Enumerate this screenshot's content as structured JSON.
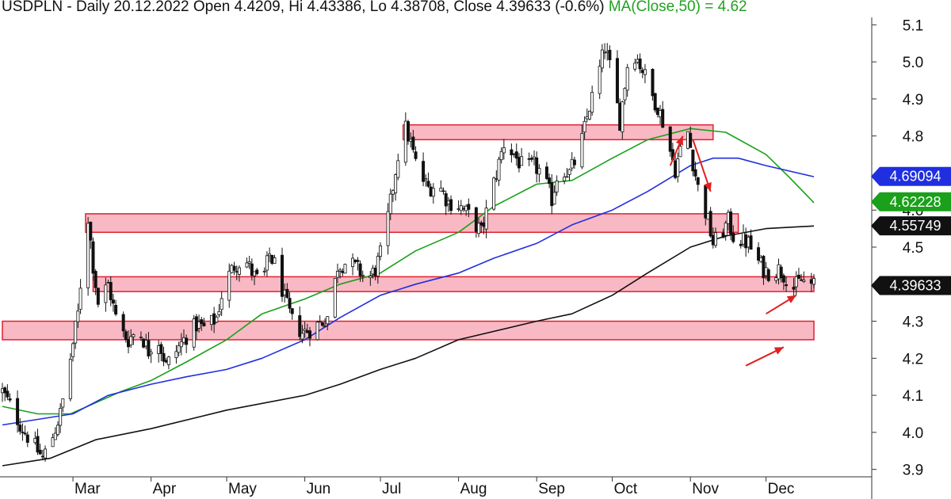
{
  "chart_data": {
    "type": "candlestick",
    "title": {
      "symbol": "USDPLN",
      "period": "Daily",
      "date": "20.12.2022",
      "open": "Open 4.4209,",
      "high": "Hi 4.43386,",
      "low": "Lo 4.38708,",
      "close": "Close 4.39633 (-0.6%)",
      "ma_label": "MA(Close,50) = 4.62"
    },
    "x_axis": {
      "type": "date",
      "range": [
        "2022-02-01",
        "2022-12-31"
      ],
      "ticks": [
        {
          "label": "Mar",
          "date": "2022-03-01"
        },
        {
          "label": "Apr",
          "date": "2022-04-01"
        },
        {
          "label": "May",
          "date": "2022-05-01"
        },
        {
          "label": "Jun",
          "date": "2022-06-01"
        },
        {
          "label": "Jul",
          "date": "2022-07-01"
        },
        {
          "label": "Aug",
          "date": "2022-08-01"
        },
        {
          "label": "Sep",
          "date": "2022-09-01"
        },
        {
          "label": "Oct",
          "date": "2022-10-01"
        },
        {
          "label": "Nov",
          "date": "2022-11-01"
        },
        {
          "label": "Dec",
          "date": "2022-12-01"
        }
      ]
    },
    "y_axis": {
      "position": "right",
      "range": [
        3.88,
        5.12
      ],
      "ticks": [
        {
          "label": "3.9",
          "value": 3.9
        },
        {
          "label": "4.0",
          "value": 4.0
        },
        {
          "label": "4.1",
          "value": 4.1
        },
        {
          "label": "4.2",
          "value": 4.2
        },
        {
          "label": "4.3",
          "value": 4.3
        },
        {
          "label": "4.5",
          "value": 4.5
        },
        {
          "label": "4.6",
          "value": 4.6
        },
        {
          "label": "4.8",
          "value": 4.8
        },
        {
          "label": "4.9",
          "value": 4.9
        },
        {
          "label": "5.0",
          "value": 5.0
        },
        {
          "label": "5.1",
          "value": 5.1
        }
      ]
    },
    "grid": false,
    "price_path": [
      [
        "2022-02-01",
        4.11
      ],
      [
        "2022-02-05",
        4.06
      ],
      [
        "2022-02-09",
        4.01
      ],
      [
        "2022-02-13",
        3.97
      ],
      [
        "2022-02-17",
        3.93
      ],
      [
        "2022-02-21",
        3.99
      ],
      [
        "2022-02-24",
        4.05
      ],
      [
        "2022-02-26",
        4.12
      ],
      [
        "2022-02-28",
        4.2
      ],
      [
        "2022-03-03",
        4.32
      ],
      [
        "2022-03-05",
        4.48
      ],
      [
        "2022-03-07",
        4.58
      ],
      [
        "2022-03-09",
        4.45
      ],
      [
        "2022-03-11",
        4.35
      ],
      [
        "2022-03-15",
        4.4
      ],
      [
        "2022-03-19",
        4.28
      ],
      [
        "2022-03-23",
        4.25
      ],
      [
        "2022-03-27",
        4.28
      ],
      [
        "2022-03-31",
        4.22
      ],
      [
        "2022-04-03",
        4.27
      ],
      [
        "2022-04-07",
        4.18
      ],
      [
        "2022-04-11",
        4.22
      ],
      [
        "2022-04-15",
        4.26
      ],
      [
        "2022-04-19",
        4.29
      ],
      [
        "2022-04-23",
        4.28
      ],
      [
        "2022-04-27",
        4.31
      ],
      [
        "2022-04-30",
        4.4
      ],
      [
        "2022-05-04",
        4.45
      ],
      [
        "2022-05-08",
        4.47
      ],
      [
        "2022-05-12",
        4.42
      ],
      [
        "2022-05-15",
        4.4
      ],
      [
        "2022-05-18",
        4.48
      ],
      [
        "2022-05-21",
        4.44
      ],
      [
        "2022-05-24",
        4.36
      ],
      [
        "2022-05-27",
        4.3
      ],
      [
        "2022-05-31",
        4.27
      ],
      [
        "2022-06-04",
        4.28
      ],
      [
        "2022-06-08",
        4.3
      ],
      [
        "2022-06-11",
        4.32
      ],
      [
        "2022-06-14",
        4.45
      ],
      [
        "2022-06-18",
        4.46
      ],
      [
        "2022-06-22",
        4.44
      ],
      [
        "2022-06-26",
        4.41
      ],
      [
        "2022-06-29",
        4.44
      ],
      [
        "2022-07-02",
        4.5
      ],
      [
        "2022-07-05",
        4.62
      ],
      [
        "2022-07-08",
        4.75
      ],
      [
        "2022-07-11",
        4.82
      ],
      [
        "2022-07-13",
        4.78
      ],
      [
        "2022-07-16",
        4.7
      ],
      [
        "2022-07-20",
        4.66
      ],
      [
        "2022-07-24",
        4.67
      ],
      [
        "2022-07-28",
        4.62
      ],
      [
        "2022-07-31",
        4.62
      ],
      [
        "2022-08-03",
        4.6
      ],
      [
        "2022-08-06",
        4.58
      ],
      [
        "2022-08-10",
        4.54
      ],
      [
        "2022-08-13",
        4.62
      ],
      [
        "2022-08-16",
        4.7
      ],
      [
        "2022-08-19",
        4.78
      ],
      [
        "2022-08-23",
        4.75
      ],
      [
        "2022-08-27",
        4.71
      ],
      [
        "2022-08-31",
        4.72
      ],
      [
        "2022-09-03",
        4.7
      ],
      [
        "2022-09-07",
        4.63
      ],
      [
        "2022-09-10",
        4.72
      ],
      [
        "2022-09-14",
        4.7
      ],
      [
        "2022-09-18",
        4.76
      ],
      [
        "2022-09-22",
        4.88
      ],
      [
        "2022-09-25",
        4.95
      ],
      [
        "2022-09-28",
        5.04
      ],
      [
        "2022-10-01",
        4.96
      ],
      [
        "2022-10-04",
        4.84
      ],
      [
        "2022-10-07",
        4.99
      ],
      [
        "2022-10-10",
        5.02
      ],
      [
        "2022-10-13",
        4.98
      ],
      [
        "2022-10-16",
        4.92
      ],
      [
        "2022-10-19",
        4.88
      ],
      [
        "2022-10-22",
        4.82
      ],
      [
        "2022-10-24",
        4.76
      ],
      [
        "2022-10-26",
        4.71
      ],
      [
        "2022-10-28",
        4.76
      ],
      [
        "2022-10-31",
        4.81
      ],
      [
        "2022-11-02",
        4.73
      ],
      [
        "2022-11-04",
        4.66
      ],
      [
        "2022-11-06",
        4.62
      ],
      [
        "2022-11-08",
        4.57
      ],
      [
        "2022-11-10",
        4.51
      ],
      [
        "2022-11-13",
        4.53
      ],
      [
        "2022-11-16",
        4.57
      ],
      [
        "2022-11-18",
        4.53
      ],
      [
        "2022-11-21",
        4.52
      ],
      [
        "2022-11-24",
        4.51
      ],
      [
        "2022-11-27",
        4.47
      ],
      [
        "2022-11-30",
        4.44
      ],
      [
        "2022-12-03",
        4.43
      ],
      [
        "2022-12-06",
        4.44
      ],
      [
        "2022-12-09",
        4.42
      ],
      [
        "2022-12-12",
        4.39
      ],
      [
        "2022-12-15",
        4.41
      ],
      [
        "2022-12-20",
        4.396
      ]
    ],
    "series": [
      {
        "type": "line",
        "color": "#1aa01a",
        "points": [
          [
            "2022-02-01",
            4.07
          ],
          [
            "2022-02-15",
            4.05
          ],
          [
            "2022-02-28",
            4.05
          ],
          [
            "2022-03-10",
            4.08
          ],
          [
            "2022-03-20",
            4.11
          ],
          [
            "2022-04-01",
            4.14
          ],
          [
            "2022-04-15",
            4.19
          ],
          [
            "2022-05-01",
            4.25
          ],
          [
            "2022-05-15",
            4.32
          ],
          [
            "2022-06-01",
            4.36
          ],
          [
            "2022-06-15",
            4.4
          ],
          [
            "2022-07-01",
            4.43
          ],
          [
            "2022-07-15",
            4.49
          ],
          [
            "2022-08-01",
            4.54
          ],
          [
            "2022-08-15",
            4.61
          ],
          [
            "2022-09-01",
            4.67
          ],
          [
            "2022-09-15",
            4.68
          ],
          [
            "2022-10-01",
            4.74
          ],
          [
            "2022-10-15",
            4.79
          ],
          [
            "2022-11-01",
            4.82
          ],
          [
            "2022-11-15",
            4.81
          ],
          [
            "2022-12-01",
            4.75
          ],
          [
            "2022-12-10",
            4.69
          ],
          [
            "2022-12-20",
            4.62
          ]
        ]
      },
      {
        "type": "line",
        "color": "#1f2fe0",
        "points": [
          [
            "2022-02-01",
            4.02
          ],
          [
            "2022-03-01",
            4.05
          ],
          [
            "2022-03-15",
            4.1
          ],
          [
            "2022-04-01",
            4.13
          ],
          [
            "2022-04-15",
            4.15
          ],
          [
            "2022-05-01",
            4.17
          ],
          [
            "2022-05-15",
            4.2
          ],
          [
            "2022-06-01",
            4.25
          ],
          [
            "2022-06-15",
            4.31
          ],
          [
            "2022-07-01",
            4.37
          ],
          [
            "2022-07-15",
            4.4
          ],
          [
            "2022-08-01",
            4.43
          ],
          [
            "2022-08-15",
            4.47
          ],
          [
            "2022-09-01",
            4.51
          ],
          [
            "2022-09-15",
            4.56
          ],
          [
            "2022-10-01",
            4.6
          ],
          [
            "2022-10-15",
            4.65
          ],
          [
            "2022-11-01",
            4.72
          ],
          [
            "2022-11-10",
            4.74
          ],
          [
            "2022-11-20",
            4.74
          ],
          [
            "2022-12-01",
            4.72
          ],
          [
            "2022-12-20",
            4.69
          ]
        ]
      },
      {
        "type": "line",
        "color": "#111111",
        "points": [
          [
            "2022-02-01",
            3.91
          ],
          [
            "2022-02-20",
            3.93
          ],
          [
            "2022-03-10",
            3.98
          ],
          [
            "2022-04-01",
            4.01
          ],
          [
            "2022-05-01",
            4.06
          ],
          [
            "2022-06-01",
            4.1
          ],
          [
            "2022-06-15",
            4.13
          ],
          [
            "2022-07-01",
            4.17
          ],
          [
            "2022-07-15",
            4.2
          ],
          [
            "2022-08-01",
            4.25
          ],
          [
            "2022-09-01",
            4.3
          ],
          [
            "2022-09-15",
            4.32
          ],
          [
            "2022-10-01",
            4.37
          ],
          [
            "2022-10-15",
            4.43
          ],
          [
            "2022-11-01",
            4.5
          ],
          [
            "2022-11-15",
            4.53
          ],
          [
            "2022-12-01",
            4.55
          ],
          [
            "2022-12-20",
            4.557
          ]
        ]
      }
    ],
    "zones": [
      {
        "from": "2022-07-10",
        "to": "2022-11-10",
        "low": 4.79,
        "high": 4.83
      },
      {
        "from": "2022-03-06",
        "to": "2022-11-20",
        "low": 4.54,
        "high": 4.59
      },
      {
        "from": "2022-03-09",
        "to": "2022-12-20",
        "low": 4.38,
        "high": 4.42
      },
      {
        "from": "2022-02-01",
        "to": "2022-12-20",
        "low": 4.25,
        "high": 4.3
      }
    ],
    "arrows": [
      {
        "from": [
          "2022-10-24",
          4.72
        ],
        "to": [
          "2022-10-29",
          4.8
        ]
      },
      {
        "from": [
          "2022-11-02",
          4.79
        ],
        "to": [
          "2022-11-09",
          4.65
        ]
      },
      {
        "from": [
          "2022-12-01",
          4.32
        ],
        "to": [
          "2022-12-13",
          4.37
        ]
      },
      {
        "from": [
          "2022-11-23",
          4.18
        ],
        "to": [
          "2022-12-08",
          4.23
        ]
      }
    ],
    "price_tags": [
      {
        "text": "4.69094",
        "value": 4.69094,
        "color": "#1f2fe0",
        "text_color": "#ffffff"
      },
      {
        "text": "4.62228",
        "value": 4.62228,
        "color": "#1aa01a",
        "text_color": "#ffffff"
      },
      {
        "text": "4.55749",
        "value": 4.55749,
        "color": "#111111",
        "text_color": "#ffffff"
      },
      {
        "text": "4.39633",
        "value": 4.39633,
        "color": "#111111",
        "text_color": "#ffffff"
      }
    ],
    "colors": {
      "zone_fill": "#f9b9c4",
      "zone_stroke": "#e02030",
      "arrow": "#e02020",
      "candle": "#111111",
      "axis": "#333333",
      "ma_label": "#22a022"
    }
  }
}
